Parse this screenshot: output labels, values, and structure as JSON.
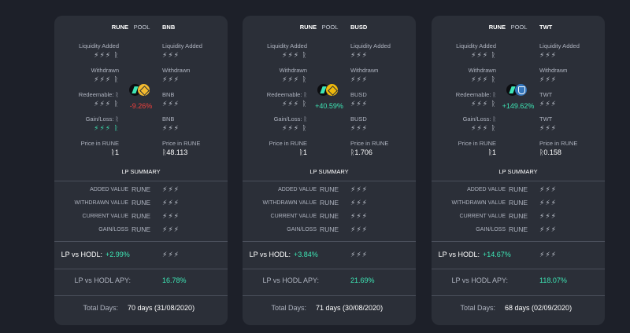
{
  "bolt": "⚡⚡⚡",
  "bolt_rune": "⚡⚡⚡ ᚱ",
  "labels": {
    "pool": "POOL",
    "liquidity_added": "Liquidity Added",
    "withdrawn": "Withdrawn",
    "redeemable": "Redeemable: ᚱ",
    "gain_loss": "Gain/Loss: ᚱ",
    "price_in_rune": "Price in RUNE",
    "lp_summary": "LP SUMMARY",
    "added_value": "ADDED VALUE",
    "withdrawn_value": "WITHDRAWN VALUE",
    "current_value": "CURRENT VALUE",
    "gain_loss_caps": "GAIN/LOSS",
    "rune": "RUNE",
    "lp_vs_hodl": "LP vs HODL:",
    "lp_vs_hodl_apy": "LP vs HODL APY:",
    "total_days": "Total Days:"
  },
  "cards": [
    {
      "left_asset": "RUNE",
      "right_asset": "BNB",
      "right_redeem_label": "BNB",
      "right_gain_label": "BNB",
      "rune_price": "ᚱ1",
      "asset_price": "ᚱ48.113",
      "pool_change": "-9.26%",
      "pool_change_color": "#f0403c",
      "token_icon": "bnb-icon",
      "lp_vs_hodl": "+2.99%",
      "apy": "16.78%",
      "total_days": "70 days (31/08/2020)"
    },
    {
      "left_asset": "RUNE",
      "right_asset": "BUSD",
      "right_redeem_label": "BUSD",
      "right_gain_label": "BUSD",
      "rune_price": "ᚱ1",
      "asset_price": "ᚱ1.706",
      "pool_change": "+40.59%",
      "pool_change_color": "#3ee6b5",
      "token_icon": "busd-icon",
      "lp_vs_hodl": "+3.84%",
      "apy": "21.69%",
      "total_days": "71 days (30/08/2020)"
    },
    {
      "left_asset": "RUNE",
      "right_asset": "TWT",
      "right_redeem_label": "TWT",
      "right_gain_label": "TWT",
      "rune_price": "ᚱ1",
      "asset_price": "ᚱ0.158",
      "pool_change": "+149.62%",
      "pool_change_color": "#3ee6b5",
      "token_icon": "twt-icon",
      "lp_vs_hodl": "+14.67%",
      "apy": "118.07%",
      "total_days": "68 days (02/09/2020)"
    }
  ]
}
